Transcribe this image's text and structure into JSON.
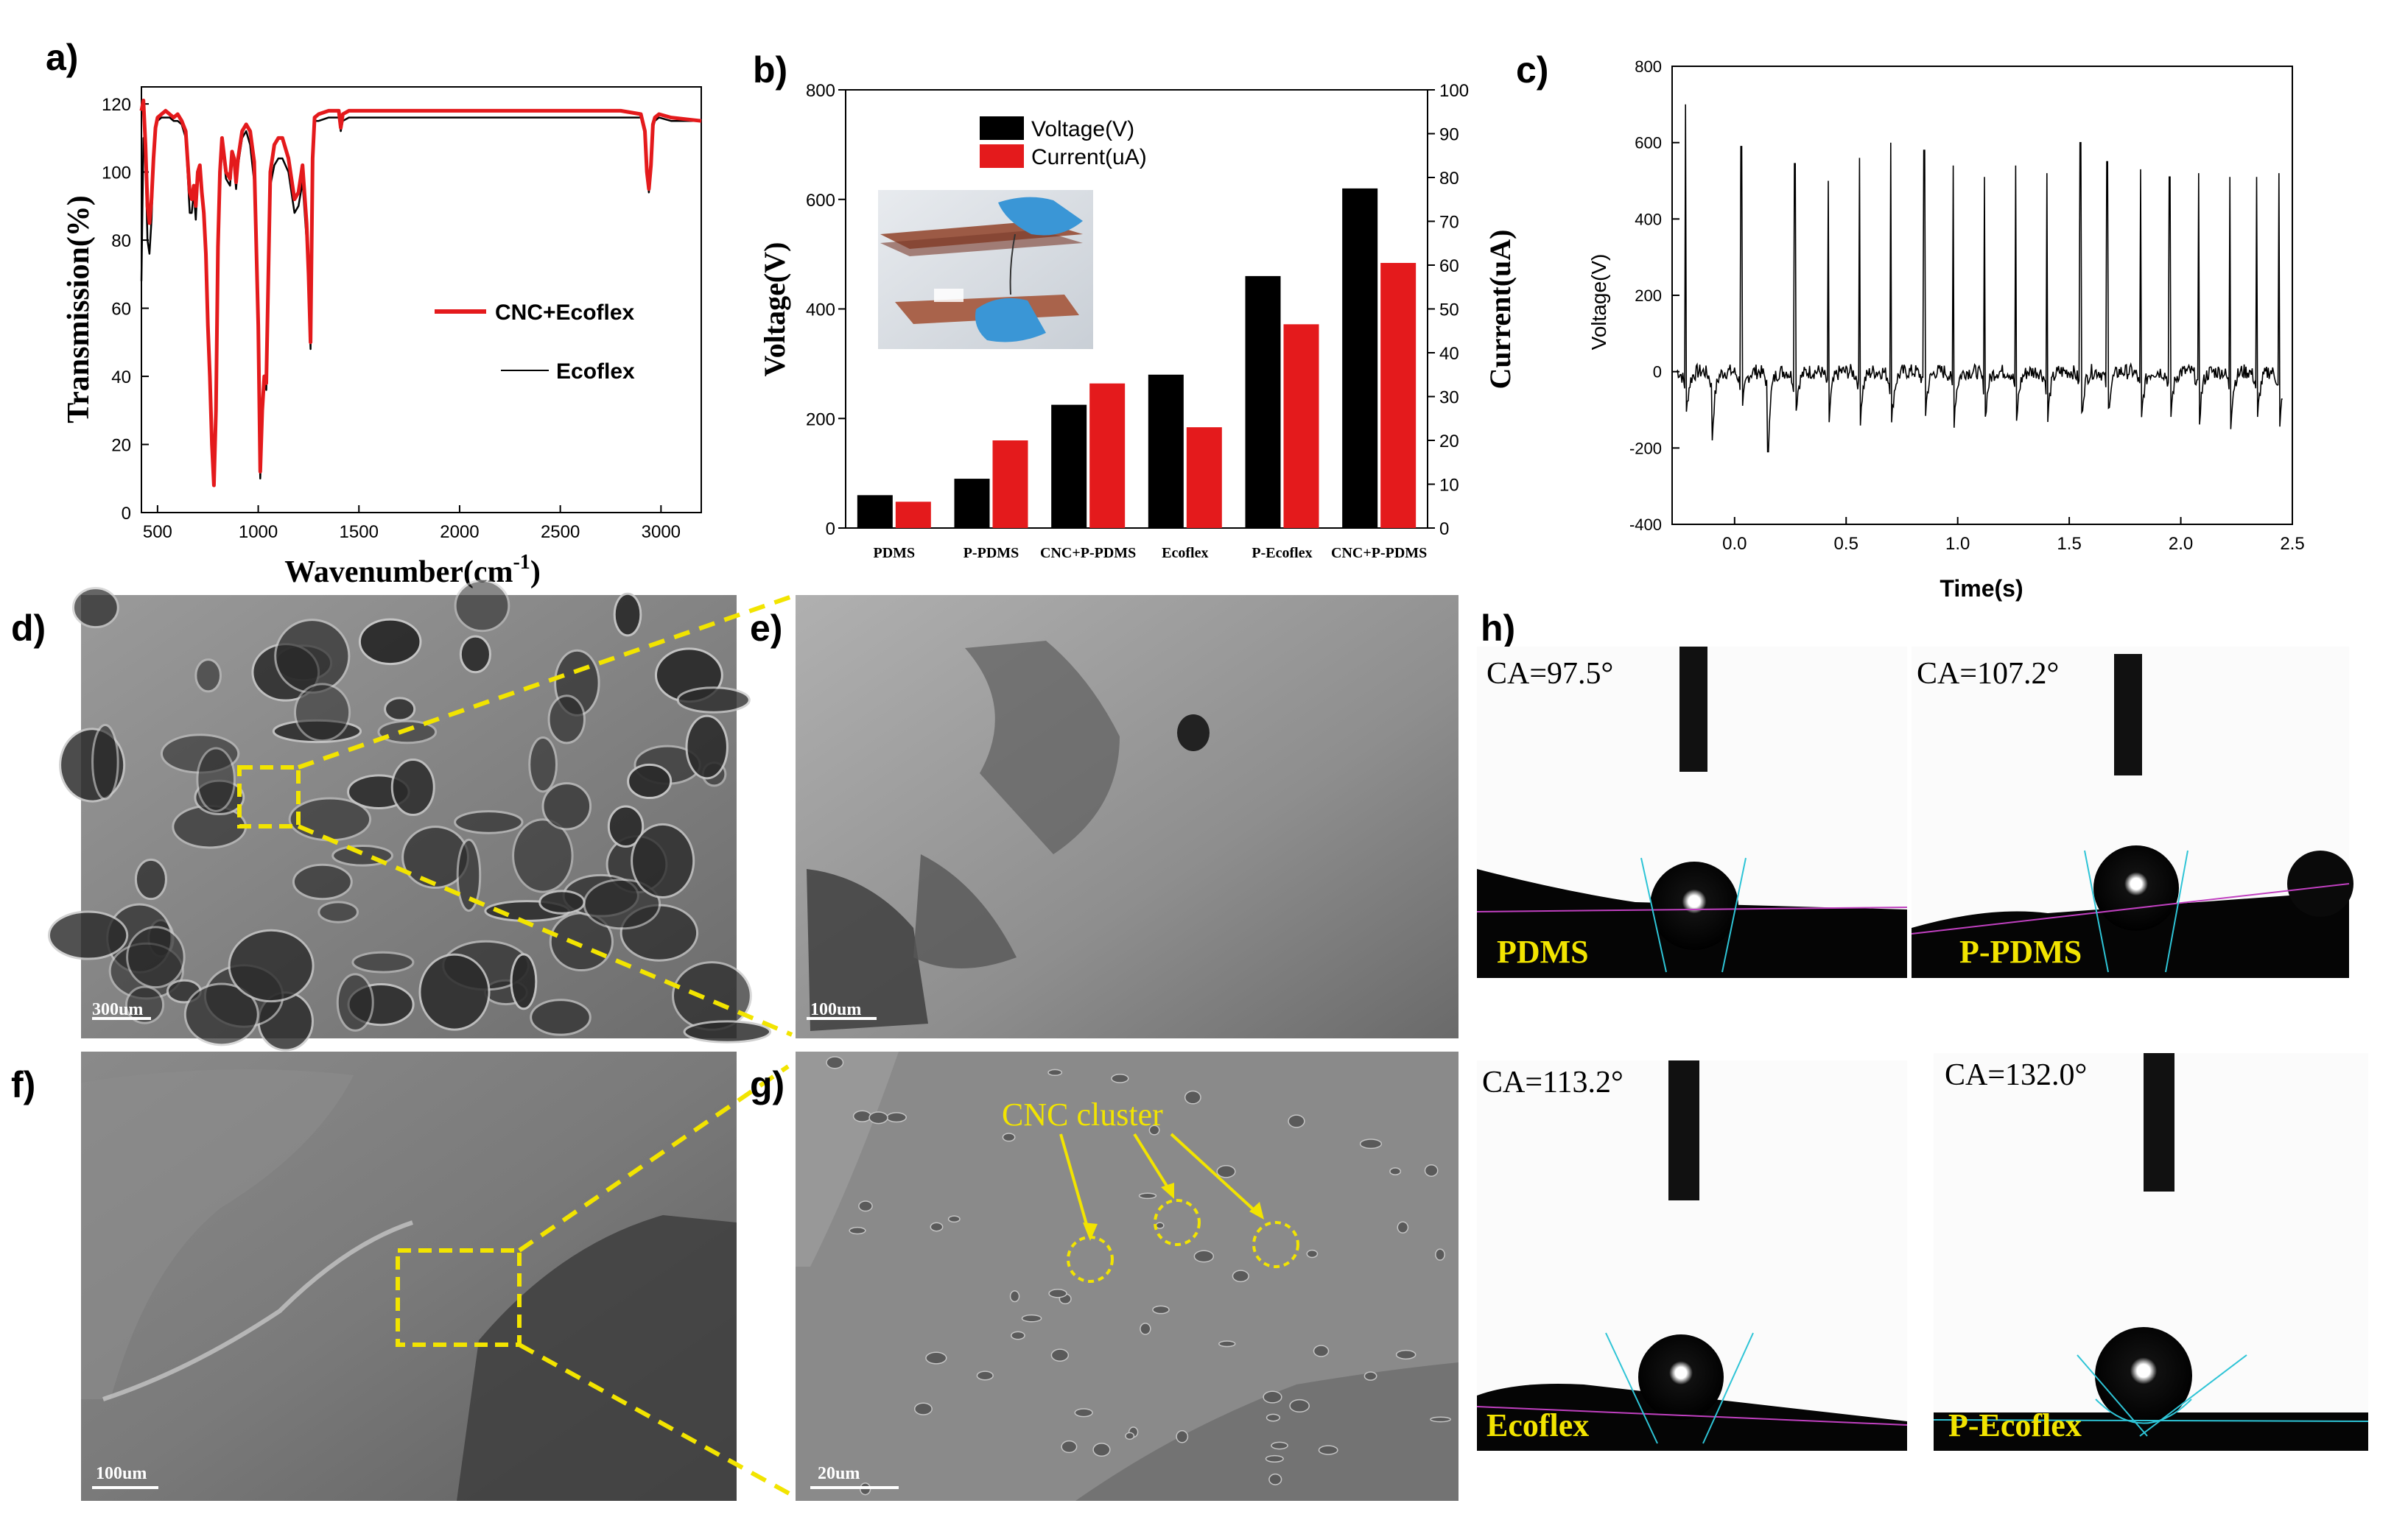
{
  "panel_letters": {
    "a": "a)",
    "b": "b)",
    "c": "c)",
    "d": "d)",
    "e": "e)",
    "f": "f)",
    "g": "g)",
    "h": "h)"
  },
  "colors": {
    "red": "#e41a1c",
    "black": "#000000",
    "yellow": "#f2e400",
    "cyan": "#2ec4d6",
    "magenta": "#c040c0"
  },
  "chart_data": [
    {
      "id": "a",
      "type": "line",
      "xlabel": "Wavenumber(cm",
      "xlabel_sup": "-1",
      "xlabel_tail": ")",
      "ylabel": "Transmission(%)",
      "xlim": [
        420,
        3200
      ],
      "ylim": [
        0,
        125
      ],
      "xticks": [
        "500",
        "1000",
        "1500",
        "2000",
        "2500",
        "3000"
      ],
      "yticks": [
        "0",
        "20",
        "40",
        "60",
        "80",
        "100",
        "120"
      ],
      "legend_position": "right",
      "series": [
        {
          "name": "CNC+Ecoflex",
          "color": "#e41a1c",
          "x": [
            420,
            430,
            440,
            450,
            460,
            470,
            480,
            490,
            500,
            520,
            540,
            560,
            580,
            600,
            620,
            640,
            660,
            670,
            680,
            690,
            700,
            710,
            720,
            730,
            740,
            750,
            760,
            770,
            780,
            790,
            800,
            810,
            820,
            840,
            860,
            870,
            880,
            890,
            900,
            920,
            940,
            960,
            980,
            1000,
            1010,
            1020,
            1030,
            1040,
            1060,
            1080,
            1100,
            1120,
            1150,
            1180,
            1200,
            1220,
            1240,
            1250,
            1260,
            1270,
            1280,
            1300,
            1350,
            1400,
            1410,
            1420,
            1450,
            1500,
            1600,
            1800,
            2000,
            2200,
            2400,
            2600,
            2800,
            2900,
            2920,
            2930,
            2940,
            2950,
            2960,
            2970,
            2990,
            3050,
            3200
          ],
          "y": [
            118,
            121,
            108,
            90,
            85,
            92,
            104,
            113,
            116,
            117,
            118,
            117,
            116,
            117,
            115,
            112,
            94,
            92,
            96,
            90,
            100,
            102,
            94,
            88,
            76,
            55,
            40,
            20,
            8,
            30,
            78,
            100,
            110,
            100,
            98,
            106,
            104,
            97,
            104,
            112,
            114,
            112,
            103,
            55,
            12,
            30,
            40,
            38,
            100,
            108,
            110,
            110,
            104,
            92,
            94,
            102,
            85,
            70,
            50,
            104,
            116,
            117,
            118,
            118,
            113,
            117,
            118,
            118,
            118,
            118,
            118,
            118,
            118,
            118,
            118,
            117,
            112,
            100,
            95,
            102,
            114,
            116,
            117,
            116,
            115
          ]
        },
        {
          "name": "Ecoflex",
          "color": "#000000",
          "x": [
            420,
            430,
            440,
            450,
            460,
            470,
            480,
            490,
            500,
            520,
            540,
            560,
            580,
            600,
            620,
            640,
            660,
            670,
            680,
            690,
            700,
            710,
            720,
            730,
            740,
            750,
            760,
            770,
            780,
            790,
            800,
            810,
            820,
            840,
            860,
            870,
            880,
            890,
            900,
            920,
            940,
            960,
            980,
            1000,
            1010,
            1020,
            1030,
            1040,
            1060,
            1080,
            1100,
            1120,
            1150,
            1180,
            1200,
            1220,
            1240,
            1250,
            1260,
            1270,
            1280,
            1300,
            1350,
            1400,
            1410,
            1420,
            1450,
            1500,
            1600,
            1800,
            2000,
            2200,
            2400,
            2600,
            2800,
            2900,
            2920,
            2930,
            2940,
            2950,
            2960,
            2970,
            2990,
            3050,
            3200
          ],
          "y": [
            68,
            110,
            104,
            80,
            76,
            86,
            102,
            112,
            115,
            116,
            116,
            116,
            115,
            115,
            114,
            110,
            88,
            88,
            94,
            86,
            98,
            100,
            92,
            86,
            74,
            52,
            38,
            18,
            9,
            28,
            76,
            98,
            108,
            98,
            96,
            104,
            102,
            95,
            102,
            110,
            112,
            108,
            97,
            50,
            10,
            28,
            38,
            36,
            96,
            102,
            104,
            104,
            100,
            88,
            90,
            97,
            80,
            66,
            48,
            103,
            115,
            115,
            116,
            116,
            112,
            115,
            116,
            116,
            116,
            116,
            116,
            116,
            116,
            116,
            116,
            116,
            111,
            99,
            94,
            101,
            113,
            115,
            116,
            115,
            115
          ]
        }
      ]
    },
    {
      "id": "b",
      "type": "bar",
      "ylabel": "Voltage(V)",
      "y2label": "Current(uA)",
      "ylim": [
        0,
        800
      ],
      "y2lim": [
        0,
        100
      ],
      "yticks": [
        "0",
        "200",
        "400",
        "600",
        "800"
      ],
      "y2ticks": [
        "0",
        "10",
        "20",
        "30",
        "40",
        "50",
        "60",
        "70",
        "80",
        "90",
        "100"
      ],
      "categories": [
        "PDMS",
        "P-PDMS",
        "CNC+P-PDMS",
        "Ecoflex",
        "P-Ecoflex",
        "CNC+P-PDMS"
      ],
      "legend_position": "top-left",
      "series": [
        {
          "name": "Voltage(V)",
          "color": "#000000",
          "axis": "left",
          "values": [
            60,
            90,
            225,
            280,
            460,
            620
          ]
        },
        {
          "name": "Current(uA)",
          "color": "#e41a1c",
          "axis": "right",
          "values": [
            6,
            20,
            33,
            23,
            46.5,
            60.5
          ]
        }
      ]
    },
    {
      "id": "c",
      "type": "line",
      "xlabel": "Time(s)",
      "ylabel": "Voltage(V)",
      "xlim": [
        -0.28,
        2.5
      ],
      "ylim": [
        -400,
        800
      ],
      "xticks": [
        "0.0",
        "0.5",
        "1.0",
        "1.5",
        "2.0",
        "2.5"
      ],
      "yticks": [
        "-400",
        "-200",
        "0",
        "200",
        "400",
        "600",
        "800"
      ],
      "spikes": {
        "t": [
          -0.22,
          -0.1,
          0.03,
          0.15,
          0.27,
          0.42,
          0.56,
          0.7,
          0.85,
          0.98,
          1.12,
          1.26,
          1.4,
          1.55,
          1.67,
          1.82,
          1.95,
          2.08,
          2.22,
          2.34,
          2.44
        ],
        "peak": [
          700,
          -180,
          590,
          -210,
          545,
          500,
          560,
          600,
          580,
          540,
          510,
          540,
          520,
          600,
          550,
          530,
          510,
          520,
          510,
          510,
          520
        ],
        "trough": [
          -180,
          -200,
          -190,
          -210,
          -180,
          -200,
          -190,
          -220,
          -200,
          -200,
          -190,
          -210,
          -200,
          -220,
          -190,
          -200,
          -210,
          -200,
          -210,
          -200,
          -240
        ]
      },
      "series": [
        {
          "color": "#000000"
        }
      ]
    }
  ],
  "inset_b": {
    "type": "photo"
  },
  "sem": {
    "d": {
      "scale": "300um"
    },
    "e": {
      "scale": "100um"
    },
    "f": {
      "scale": "100um"
    },
    "g": {
      "scale": "20um",
      "annotation": "CNC cluster"
    }
  },
  "contact_angle": [
    {
      "ca": "CA=97.5°",
      "label": "PDMS"
    },
    {
      "ca": "CA=107.2°",
      "label": "P-PDMS"
    },
    {
      "ca": "CA=113.2°",
      "label": "Ecoflex"
    },
    {
      "ca": "CA=132.0°",
      "label": "P-Ecoflex"
    }
  ]
}
